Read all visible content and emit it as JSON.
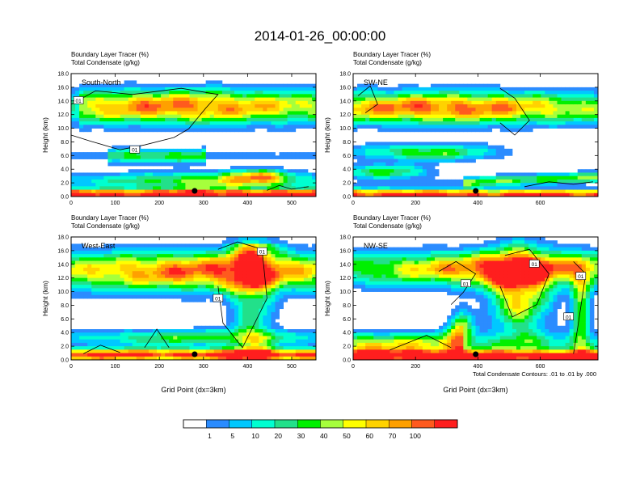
{
  "title": "2014-01-26_00:00:00",
  "chart_data": {
    "type": "heatmap",
    "shading_levels": [
      1,
      5,
      10,
      20,
      30,
      40,
      50,
      60,
      70,
      100
    ],
    "palette": [
      "#ffffff",
      "#2b8cff",
      "#00c8ff",
      "#00ffd0",
      "#22e08a",
      "#00f000",
      "#a6ff3c",
      "#ffff00",
      "#ffd200",
      "#ffa000",
      "#ff5a1e",
      "#ff1e1e"
    ],
    "contour_note": "Total Condensate Contours: .01 to .01 by .000",
    "panels": [
      {
        "id": "south-north",
        "subtitle_line1": "Boundary Layer Tracer   (%)",
        "subtitle_line2": "Total Condensate   (g/kg)",
        "label": "South-North",
        "ylabel": "Height (km)",
        "xlabel": "",
        "xlim": [
          0,
          555
        ],
        "xticks": [
          "0",
          "100",
          "200",
          "300",
          "400",
          "500"
        ],
        "xtick_values": [
          0,
          100,
          200,
          300,
          400,
          500
        ],
        "ylim": [
          0,
          18
        ],
        "yticks": [
          "0.0",
          "2.0",
          "4.0",
          "6.0",
          "8.0",
          "10.0",
          "12.0",
          "14.0",
          "16.0",
          "18.0"
        ],
        "contour_labels": [
          "01",
          "01"
        ],
        "marker_x": 280
      },
      {
        "id": "sw-ne",
        "subtitle_line1": "Boundary Layer Tracer   (%)",
        "subtitle_line2": "Total Condensate   (g/kg)",
        "label": "SW-NE",
        "ylabel": "Height (km)",
        "xlabel": "",
        "xlim": [
          0,
          785
        ],
        "xticks": [
          "0",
          "200",
          "400",
          "600"
        ],
        "xtick_values": [
          0,
          200,
          400,
          600
        ],
        "ylim": [
          0,
          18
        ],
        "yticks": [
          "0.0",
          "2.0",
          "4.0",
          "6.0",
          "8.0",
          "10.0",
          "12.0",
          "14.0",
          "16.0",
          "18.0"
        ],
        "contour_labels": [],
        "marker_x": 393
      },
      {
        "id": "west-east",
        "subtitle_line1": "Boundary Layer Tracer   (%)",
        "subtitle_line2": "Total Condensate   (g/kg)",
        "label": "West-East",
        "ylabel": "Height (km)",
        "xlabel": "Grid Point (dx=3km)",
        "xlim": [
          0,
          555
        ],
        "xticks": [
          "0",
          "100",
          "200",
          "300",
          "400",
          "500"
        ],
        "xtick_values": [
          0,
          100,
          200,
          300,
          400,
          500
        ],
        "ylim": [
          0,
          18
        ],
        "yticks": [
          "0.0",
          "2.0",
          "4.0",
          "6.0",
          "8.0",
          "10.0",
          "12.0",
          "14.0",
          "16.0",
          "18.0"
        ],
        "contour_labels": [
          "01",
          "01"
        ],
        "marker_x": 280
      },
      {
        "id": "nw-se",
        "subtitle_line1": "Boundary Layer Tracer   (%)",
        "subtitle_line2": "Total Condensate   (g/kg)",
        "label": "NW-SE",
        "ylabel": "Height (km)",
        "xlabel": "Grid Point (dx=3km)",
        "xlim": [
          0,
          785
        ],
        "xticks": [
          "0",
          "200",
          "400",
          "600"
        ],
        "xtick_values": [
          0,
          200,
          400,
          600
        ],
        "ylim": [
          0,
          18
        ],
        "yticks": [
          "0.0",
          "2.0",
          "4.0",
          "6.0",
          "8.0",
          "10.0",
          "12.0",
          "14.0",
          "16.0",
          "18.0"
        ],
        "contour_labels": [
          "01",
          "01",
          "01",
          "01"
        ],
        "marker_x": 393
      }
    ]
  }
}
